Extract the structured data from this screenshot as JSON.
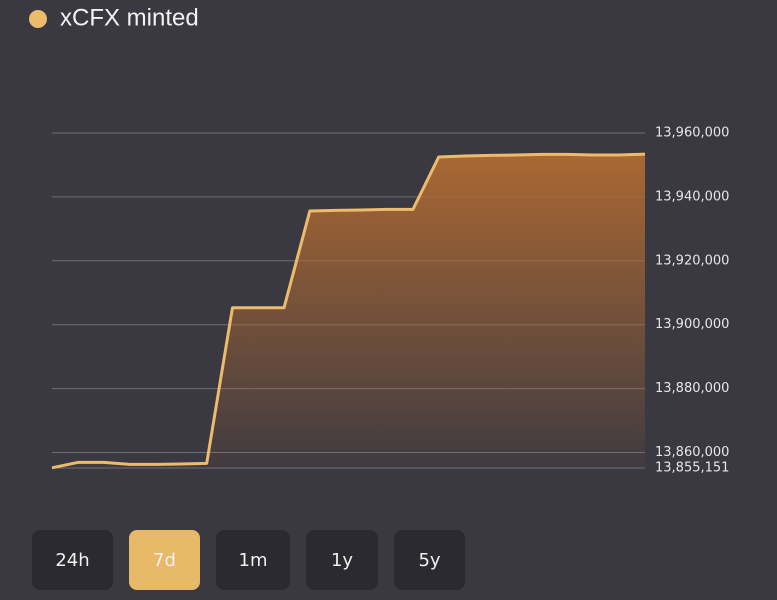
{
  "chart_data": {
    "type": "line",
    "title": "xCFX minted",
    "series": [
      {
        "name": "xCFX minted",
        "color": "#ecbb6c",
        "values": [
          13855200,
          13856900,
          13856900,
          13856300,
          13856300,
          13856400,
          13856600,
          13905300,
          13905300,
          13905300,
          13935600,
          13935800,
          13935900,
          13936100,
          13936100,
          13952500,
          13952800,
          13953000,
          13953100,
          13953300,
          13953300,
          13953100,
          13953100,
          13953400
        ]
      }
    ],
    "ylim": [
      13855151,
      13960000
    ],
    "yticks": [
      {
        "value": 13855151,
        "label": "13,855,151"
      },
      {
        "value": 13860000,
        "label": "13,860,000"
      },
      {
        "value": 13880000,
        "label": "13,880,000"
      },
      {
        "value": 13900000,
        "label": "13,900,000"
      },
      {
        "value": 13920000,
        "label": "13,920,000"
      },
      {
        "value": 13940000,
        "label": "13,940,000"
      },
      {
        "value": 13960000,
        "label": "13,960,000"
      }
    ],
    "grid": true,
    "area": true
  },
  "controls": [
    "24h",
    "7d",
    "1m",
    "1y",
    "5y"
  ]
}
